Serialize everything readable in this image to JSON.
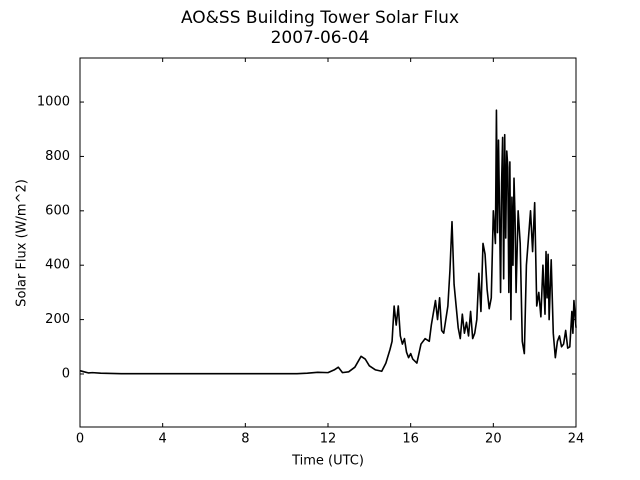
{
  "chart_data": {
    "type": "line",
    "title": "AO&SS Building Tower Solar Flux",
    "subtitle": "2007-06-04",
    "x_label": "Time (UTC)",
    "y_label": "Solar Flux (W/m^2)",
    "color": "#000000",
    "xlim": [
      0,
      24
    ],
    "xticks": [
      0,
      4,
      8,
      12,
      16,
      20,
      24
    ],
    "ylim": [
      -195,
      1162
    ],
    "yticks": [
      0,
      200,
      400,
      600,
      800,
      1000
    ],
    "grid": false,
    "x": [
      0,
      0.2,
      0.4,
      0.6,
      1,
      2,
      4,
      6,
      8,
      10,
      10.5,
      11,
      11.5,
      12,
      12.3,
      12.5,
      12.7,
      13,
      13.3,
      13.6,
      13.8,
      14,
      14.3,
      14.6,
      14.8,
      15,
      15.1,
      15.2,
      15.3,
      15.4,
      15.5,
      15.6,
      15.7,
      15.8,
      15.9,
      16,
      16.1,
      16.3,
      16.5,
      16.7,
      16.9,
      17,
      17.2,
      17.3,
      17.4,
      17.5,
      17.6,
      17.8,
      17.9,
      18,
      18.1,
      18.2,
      18.3,
      18.4,
      18.5,
      18.6,
      18.7,
      18.8,
      18.9,
      19,
      19.1,
      19.2,
      19.3,
      19.4,
      19.5,
      19.6,
      19.7,
      19.8,
      19.9,
      20,
      20.1,
      20.15,
      20.2,
      20.25,
      20.3,
      20.35,
      20.4,
      20.45,
      20.5,
      20.55,
      20.6,
      20.65,
      20.7,
      20.75,
      20.8,
      20.85,
      20.9,
      20.95,
      21,
      21.05,
      21.1,
      21.2,
      21.3,
      21.4,
      21.5,
      21.6,
      21.7,
      21.8,
      21.9,
      22,
      22.1,
      22.2,
      22.3,
      22.4,
      22.5,
      22.55,
      22.6,
      22.65,
      22.7,
      22.8,
      22.9,
      23,
      23.1,
      23.2,
      23.3,
      23.4,
      23.5,
      23.6,
      23.7,
      23.8,
      23.85,
      23.9,
      24
    ],
    "values": [
      12,
      8,
      4,
      5,
      3,
      1,
      1,
      1,
      1,
      1,
      1,
      3,
      6,
      5,
      15,
      25,
      5,
      8,
      25,
      65,
      55,
      30,
      15,
      10,
      40,
      90,
      120,
      250,
      180,
      250,
      140,
      110,
      130,
      80,
      60,
      75,
      55,
      40,
      110,
      130,
      120,
      180,
      270,
      200,
      280,
      160,
      150,
      250,
      380,
      560,
      330,
      250,
      170,
      130,
      220,
      150,
      190,
      140,
      230,
      130,
      150,
      200,
      370,
      230,
      480,
      440,
      310,
      240,
      280,
      600,
      480,
      970,
      520,
      860,
      600,
      300,
      700,
      870,
      350,
      880,
      500,
      820,
      760,
      300,
      780,
      200,
      650,
      400,
      720,
      580,
      300,
      600,
      480,
      120,
      75,
      400,
      500,
      600,
      450,
      630,
      250,
      300,
      210,
      400,
      220,
      450,
      280,
      440,
      200,
      420,
      150,
      60,
      120,
      140,
      100,
      110,
      160,
      95,
      100,
      230,
      150,
      270,
      170
    ]
  }
}
